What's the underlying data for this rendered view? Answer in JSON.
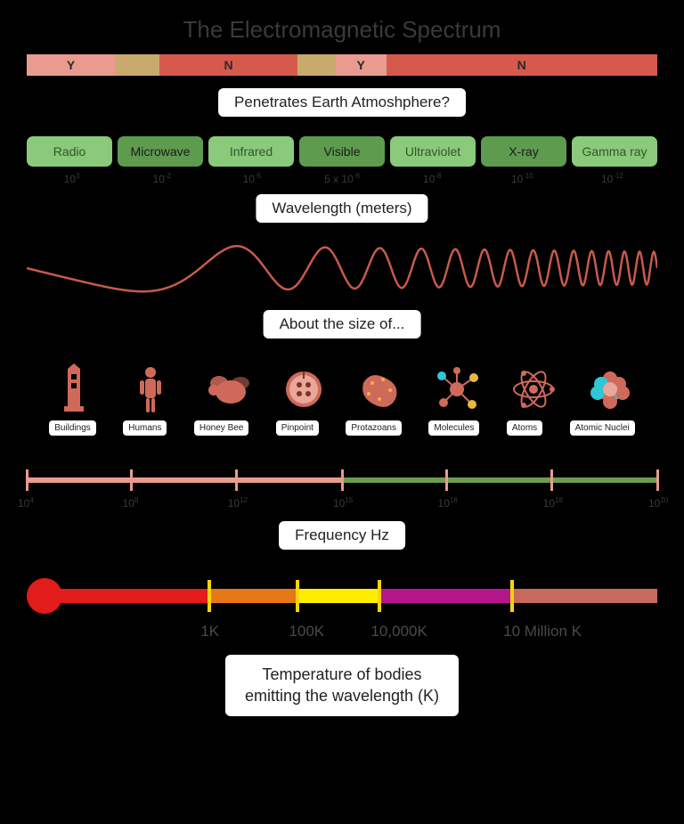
{
  "title": "The Electromagnetic Spectrum",
  "colors": {
    "bg": "#000000",
    "title_text": "#3a3a3a",
    "label_bg": "#ffffff",
    "label_text": "#222222",
    "wave": "#c75a4a",
    "icon_primary": "#cf6a5a",
    "icon_accent": "#2fc6d6",
    "icon_yellow": "#e8b93f"
  },
  "penetration": {
    "label": "Penetrates Earth Atmoshphere?",
    "segments": [
      {
        "text": "Y",
        "width_pct": 14,
        "color": "#ea9b8f"
      },
      {
        "text": "",
        "width_pct": 7,
        "color": "#c8aa6d"
      },
      {
        "text": "N",
        "width_pct": 22,
        "color": "#d65a4c"
      },
      {
        "text": "",
        "width_pct": 6,
        "color": "#c8aa6d"
      },
      {
        "text": "Y",
        "width_pct": 8,
        "color": "#ea9b8f"
      },
      {
        "text": "N",
        "width_pct": 43,
        "color": "#d65a4c"
      }
    ]
  },
  "radiation": {
    "label": "Wavelength (meters)",
    "types": [
      {
        "name": "Radio",
        "bg": "#8bc97b",
        "fg": "#2d5a24"
      },
      {
        "name": "Microwave",
        "bg": "#5e9b4f",
        "fg": "#1a1a1a"
      },
      {
        "name": "Infrared",
        "bg": "#8bc97b",
        "fg": "#2d5a24"
      },
      {
        "name": "Visible",
        "bg": "#5e9b4f",
        "fg": "#1a1a1a"
      },
      {
        "name": "Ultraviolet",
        "bg": "#8bc97b",
        "fg": "#2d5a24"
      },
      {
        "name": "X-ray",
        "bg": "#5e9b4f",
        "fg": "#1a1a1a"
      },
      {
        "name": "Gamma ray",
        "bg": "#8bc97b",
        "fg": "#2d5a24"
      }
    ],
    "wavelengths": [
      {
        "base": "10",
        "exp": "3"
      },
      {
        "base": "10",
        "exp": "-2"
      },
      {
        "base": "10",
        "exp": "-5"
      },
      {
        "base": "5 x 10",
        "exp": "-6"
      },
      {
        "base": "10",
        "exp": "-8"
      },
      {
        "base": "10",
        "exp": "-10"
      },
      {
        "base": "10",
        "exp": "-12"
      }
    ]
  },
  "size": {
    "label": "About the size of...",
    "items": [
      {
        "name": "Buildings",
        "icon": "building"
      },
      {
        "name": "Humans",
        "icon": "human"
      },
      {
        "name": "Honey Bee",
        "icon": "bee"
      },
      {
        "name": "Pinpoint",
        "icon": "pinpoint"
      },
      {
        "name": "Protazoans",
        "icon": "protozoan"
      },
      {
        "name": "Molecules",
        "icon": "molecule"
      },
      {
        "name": "Atoms",
        "icon": "atom"
      },
      {
        "name": "Atomic Nuclei",
        "icon": "nucleus"
      }
    ]
  },
  "frequency": {
    "label": "Frequency Hz",
    "bar_left_color": "#ea9b8f",
    "bar_right_color": "#6f9b4f",
    "tick_color": "#ea9b8f",
    "split_pct": 50,
    "ticks_pct": [
      0,
      16.6,
      33.3,
      50,
      66.6,
      83.3,
      100
    ],
    "labels": [
      {
        "base": "10",
        "exp": "4",
        "pos_pct": 0
      },
      {
        "base": "10",
        "exp": "8",
        "pos_pct": 16.6
      },
      {
        "base": "10",
        "exp": "12",
        "pos_pct": 33.3
      },
      {
        "base": "10",
        "exp": "15",
        "pos_pct": 50
      },
      {
        "base": "10",
        "exp": "16",
        "pos_pct": 66.6
      },
      {
        "base": "10",
        "exp": "18",
        "pos_pct": 83.3
      },
      {
        "base": "10",
        "exp": "20",
        "pos_pct": 100
      }
    ]
  },
  "temperature": {
    "label": "Temperature of bodies\nemitting the wavelength (K)",
    "bulb_color": "#e21b1b",
    "tick_color": "#ffd400",
    "segments": [
      {
        "color": "#e21b1b",
        "from_pct": 3,
        "to_pct": 29
      },
      {
        "color": "#e67817",
        "from_pct": 29,
        "to_pct": 43
      },
      {
        "color": "#ffed00",
        "from_pct": 43,
        "to_pct": 56
      },
      {
        "color": "#b4178c",
        "from_pct": 56,
        "to_pct": 77
      },
      {
        "color": "#c56a5c",
        "from_pct": 77,
        "to_pct": 100
      }
    ],
    "ticks_pct": [
      29,
      43,
      56,
      77
    ],
    "labels": [
      {
        "text": "1K",
        "pos_pct": 29
      },
      {
        "text": "100K",
        "pos_pct": 43
      },
      {
        "text": "10,000K",
        "pos_pct": 56
      },
      {
        "text": "10 Million K",
        "pos_pct": 77
      }
    ]
  }
}
